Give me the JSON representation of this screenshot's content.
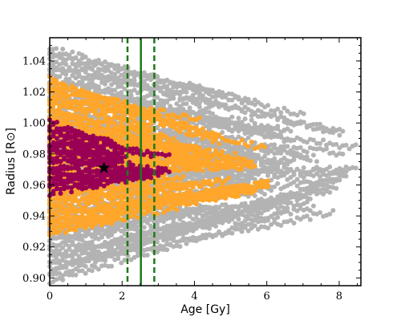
{
  "chart_data": {
    "type": "scatter",
    "xlabel": "Age [Gy]",
    "ylabel": "Radius [R⊙]",
    "xlim": [
      0,
      8.6
    ],
    "ylim": [
      0.895,
      1.055
    ],
    "x_ticks": [
      0,
      2,
      4,
      6,
      8
    ],
    "y_ticks": [
      0.9,
      0.92,
      0.94,
      0.96,
      0.98,
      1.0,
      1.02,
      1.04
    ],
    "x_tick_labels": [
      "0",
      "2",
      "4",
      "6",
      "8"
    ],
    "y_tick_labels": [
      "0.90",
      "0.92",
      "0.94",
      "0.96",
      "0.98",
      "1.00",
      "1.02",
      "1.04"
    ],
    "grid": false,
    "legend": "none",
    "series": [
      {
        "color": "#b3b3b3",
        "x_range": [
          0,
          8.6
        ],
        "radius_range": [
          0.898,
          1.048
        ]
      },
      {
        "color": "#ffa62b",
        "x_range": [
          0,
          6.2
        ],
        "radius_range": [
          0.928,
          1.028
        ]
      },
      {
        "color": "#990055",
        "x_range": [
          0,
          3.6
        ],
        "radius_range": [
          0.955,
          1.0
        ]
      }
    ],
    "marker": {
      "x": 1.5,
      "y": 0.971,
      "shape": "star",
      "color": "#000000"
    },
    "vlines": [
      {
        "x": 2.15,
        "style": "dashed",
        "color": "#1a7a1a"
      },
      {
        "x": 2.52,
        "style": "solid",
        "color": "#1a7a1a"
      },
      {
        "x": 2.89,
        "style": "dashed",
        "color": "#1a7a1a"
      }
    ]
  }
}
